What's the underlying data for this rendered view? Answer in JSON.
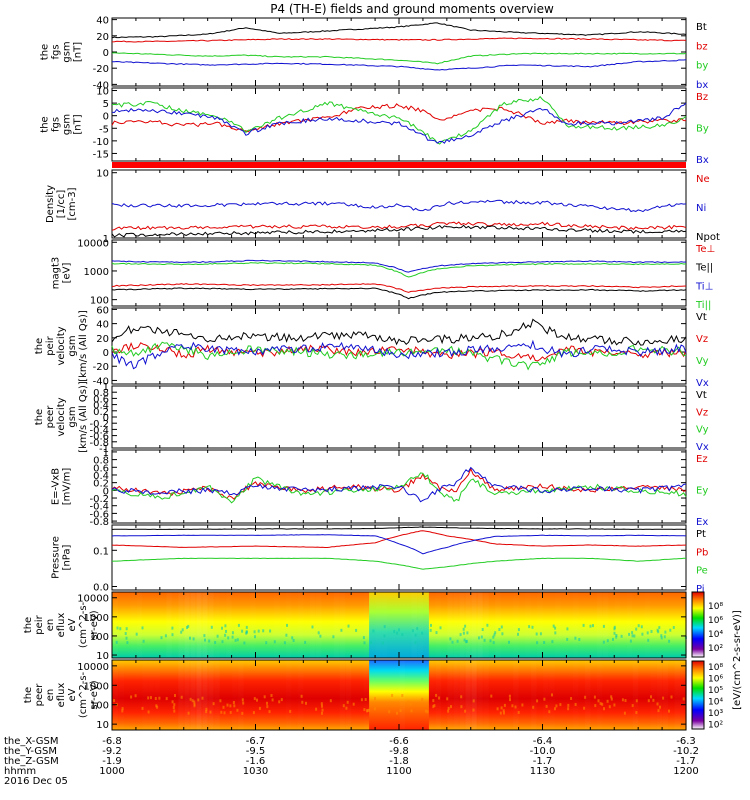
{
  "title": "P4 (TH-E) fields and ground moments overview",
  "date_label": "2016 Dec 05",
  "colors": {
    "black": "#000000",
    "red": "#e00000",
    "green": "#22cc22",
    "blue": "#1010d0"
  },
  "chart_data": [
    {
      "type": "line",
      "ylabel": [
        "the",
        "fgs",
        "gsm",
        "[nT]"
      ],
      "yticks": [
        40,
        20,
        0,
        -20,
        -40
      ],
      "ylim": [
        -42,
        42
      ],
      "ylog": false,
      "x": [
        0,
        10,
        20,
        28,
        35,
        45,
        60,
        68,
        75,
        85,
        100,
        110,
        120
      ],
      "series": [
        {
          "name": "Bt",
          "color": "#000000",
          "values": [
            18,
            19,
            22,
            30,
            23,
            26,
            31,
            36,
            27,
            24,
            21,
            25,
            22
          ]
        },
        {
          "name": "bz",
          "color": "#e00000",
          "values": [
            13,
            13,
            14,
            15,
            16,
            16,
            15,
            15,
            16,
            17,
            16,
            15,
            14
          ]
        },
        {
          "name": "by",
          "color": "#22cc22",
          "values": [
            -1,
            -3,
            -5,
            -4,
            -6,
            -6,
            -10,
            -14,
            -5,
            -2,
            -2,
            -2,
            -2
          ]
        },
        {
          "name": "bx",
          "color": "#1010d0",
          "values": [
            -12,
            -14,
            -16,
            -15,
            -14,
            -15,
            -18,
            -22,
            -20,
            -16,
            -18,
            -12,
            -10
          ]
        }
      ]
    },
    {
      "type": "line",
      "ylabel": [
        "the",
        "fgs",
        "gsm",
        "[nT]"
      ],
      "yticks": [
        10,
        5,
        0,
        -5,
        -10,
        -15
      ],
      "ylim": [
        -18,
        11
      ],
      "ylog": false,
      "x": [
        0,
        8,
        15,
        22,
        28,
        35,
        45,
        52,
        60,
        65,
        68,
        75,
        82,
        90,
        95,
        105,
        115,
        120
      ],
      "series": [
        {
          "name": "Bz",
          "color": "#e00000",
          "values": [
            -3,
            -2,
            -4,
            -3,
            -6,
            -3,
            -1,
            3,
            4,
            2,
            -2,
            2,
            3,
            -3,
            -2,
            -3,
            -2,
            -2
          ]
        },
        {
          "name": "By",
          "color": "#22cc22",
          "values": [
            4,
            5,
            2,
            0,
            -6,
            -1,
            5,
            2,
            -1,
            -6,
            -11,
            -6,
            5,
            7,
            -4,
            -5,
            -4,
            -1
          ]
        },
        {
          "name": "Bx",
          "color": "#1010d0",
          "values": [
            2,
            2,
            1,
            -1,
            -7,
            -3,
            -1,
            -2,
            -3,
            -8,
            -11,
            -8,
            -2,
            3,
            -3,
            -3,
            -1,
            5
          ]
        }
      ]
    },
    {
      "type": "bar",
      "ylabel": [],
      "yticks": [],
      "series": []
    },
    {
      "type": "line",
      "ylabel": [
        "Density",
        "[1/cc]",
        "[cm-3]"
      ],
      "yticks": [
        10,
        1
      ],
      "ylim": [
        1,
        11
      ],
      "ylog": true,
      "x": [
        0,
        15,
        30,
        45,
        55,
        60,
        65,
        70,
        80,
        90,
        100,
        110,
        120
      ],
      "series": [
        {
          "name": "Ne",
          "color": "#e00000",
          "values": [
            1.4,
            1.45,
            1.5,
            1.5,
            1.45,
            1.5,
            1.55,
            1.7,
            1.6,
            1.65,
            1.5,
            1.4,
            1.5
          ]
        },
        {
          "name": "Ni",
          "color": "#1010d0",
          "values": [
            3.2,
            3.1,
            3.3,
            3.4,
            3.0,
            3.2,
            2.6,
            3.4,
            3.6,
            3.5,
            3.0,
            2.6,
            3.4
          ]
        },
        {
          "name": "Npot",
          "color": "#000000",
          "values": [
            1.1,
            1.15,
            1.2,
            1.25,
            1.3,
            1.35,
            1.4,
            1.5,
            1.45,
            1.4,
            1.3,
            1.25,
            1.3
          ]
        }
      ]
    },
    {
      "type": "line",
      "ylabel": [
        "magt3",
        "[eV]"
      ],
      "yticks": [
        10000,
        1000,
        100
      ],
      "ylim": [
        60,
        12000
      ],
      "ylog": true,
      "x": [
        0,
        15,
        30,
        45,
        55,
        62,
        68,
        75,
        85,
        100,
        110,
        120
      ],
      "series": [
        {
          "name": "Te⊥",
          "color": "#e00000",
          "values": [
            300,
            350,
            320,
            330,
            360,
            180,
            250,
            280,
            300,
            300,
            270,
            300
          ]
        },
        {
          "name": "Te||",
          "color": "#000000",
          "values": [
            220,
            250,
            230,
            240,
            250,
            110,
            180,
            200,
            210,
            220,
            200,
            220
          ]
        },
        {
          "name": "Ti⊥",
          "color": "#1010d0",
          "values": [
            2200,
            2000,
            2300,
            2100,
            1900,
            900,
            1500,
            1800,
            2000,
            2200,
            2000,
            2100
          ]
        },
        {
          "name": "Ti||",
          "color": "#22cc22",
          "values": [
            1800,
            1700,
            1900,
            1800,
            1600,
            600,
            1200,
            1500,
            1700,
            1800,
            1700,
            1800
          ]
        }
      ]
    },
    {
      "type": "line",
      "ylabel": [
        "the",
        "peir",
        "velocity",
        "gsm",
        "[km/s (All Qs)]"
      ],
      "yticks": [
        60,
        40,
        20,
        0,
        -20,
        -40
      ],
      "ylim": [
        -45,
        62
      ],
      "ylog": false,
      "x": [
        0,
        5,
        10,
        15,
        20,
        30,
        40,
        50,
        60,
        70,
        80,
        88,
        95,
        100,
        110,
        120
      ],
      "series": [
        {
          "name": "Vt",
          "color": "#000000",
          "values": [
            20,
            35,
            30,
            25,
            20,
            22,
            20,
            25,
            15,
            18,
            22,
            40,
            20,
            18,
            15,
            18
          ]
        },
        {
          "name": "Vz",
          "color": "#e00000",
          "values": [
            0,
            10,
            5,
            -5,
            5,
            -3,
            5,
            0,
            5,
            -5,
            0,
            -10,
            5,
            0,
            -5,
            0
          ]
        },
        {
          "name": "Vy",
          "color": "#22cc22",
          "values": [
            5,
            -5,
            10,
            5,
            -5,
            5,
            0,
            -5,
            0,
            5,
            -10,
            -20,
            0,
            -5,
            5,
            0
          ]
        },
        {
          "name": "Vx",
          "color": "#1010d0",
          "values": [
            -5,
            -20,
            0,
            10,
            5,
            0,
            5,
            10,
            -5,
            0,
            5,
            10,
            -5,
            5,
            0,
            5
          ]
        }
      ]
    },
    {
      "type": "line",
      "ylabel": [
        "the",
        "peer",
        "velocity",
        "gsm",
        "[km/s (All Qs)]"
      ],
      "yticks": [
        1.0,
        0.8,
        0.6,
        0.4,
        0.2,
        0.0,
        -0.2,
        -0.4,
        -0.6,
        -0.8,
        -1.0
      ],
      "ylim": [
        -1,
        1
      ],
      "ylog": false,
      "series": [
        {
          "name": "Vt",
          "color": "#000000"
        },
        {
          "name": "Vz",
          "color": "#e00000"
        },
        {
          "name": "Vy",
          "color": "#22cc22"
        },
        {
          "name": "Vx",
          "color": "#1010d0"
        }
      ]
    },
    {
      "type": "line",
      "ylabel": [
        "E=-VxB",
        "[mV/m]"
      ],
      "yticks": [
        1.0,
        0.8,
        0.6,
        0.4,
        0.2,
        0.0,
        -0.2,
        -0.4,
        -0.6,
        -0.8
      ],
      "ylim": [
        -0.85,
        1.05
      ],
      "ylog": false,
      "x": [
        0,
        10,
        20,
        25,
        30,
        40,
        50,
        60,
        65,
        68,
        72,
        75,
        80,
        90,
        100,
        110,
        120
      ],
      "series": [
        {
          "name": "Ez",
          "color": "#e00000",
          "values": [
            0.1,
            -0.1,
            0.05,
            -0.2,
            0.2,
            0.0,
            0.1,
            0.0,
            0.4,
            0.1,
            0.0,
            0.5,
            0.0,
            0.1,
            0.0,
            0.1,
            0.0
          ]
        },
        {
          "name": "Ey",
          "color": "#22cc22",
          "values": [
            0.0,
            -0.2,
            0.1,
            -0.3,
            0.3,
            -0.1,
            0.0,
            0.1,
            0.5,
            0.0,
            -0.3,
            0.3,
            -0.1,
            0.0,
            0.1,
            0.0,
            -0.1
          ]
        },
        {
          "name": "Ex",
          "color": "#1010d0",
          "values": [
            0.0,
            -0.05,
            0.0,
            -0.1,
            0.1,
            0.0,
            0.05,
            0.1,
            -0.3,
            0.0,
            0.2,
            0.6,
            0.1,
            0.0,
            0.05,
            0.0,
            0.1
          ]
        }
      ]
    },
    {
      "type": "line",
      "ylabel": [
        "Pressure",
        "[nPa]"
      ],
      "yticks": [
        0.1,
        0.01
      ],
      "ylim": [
        0.008,
        0.5
      ],
      "ylog": true,
      "x": [
        0,
        15,
        30,
        45,
        55,
        60,
        65,
        70,
        80,
        90,
        100,
        110,
        120
      ],
      "series": [
        {
          "name": "Pt",
          "color": "#000000",
          "values": [
            0.38,
            0.38,
            0.39,
            0.39,
            0.4,
            0.42,
            0.44,
            0.42,
            0.4,
            0.39,
            0.39,
            0.38,
            0.38
          ]
        },
        {
          "name": "Pb",
          "color": "#e00000",
          "values": [
            0.14,
            0.12,
            0.13,
            0.12,
            0.16,
            0.25,
            0.35,
            0.25,
            0.15,
            0.13,
            0.14,
            0.13,
            0.14
          ]
        },
        {
          "name": "Pe",
          "color": "#22cc22",
          "values": [
            0.05,
            0.06,
            0.06,
            0.06,
            0.05,
            0.04,
            0.03,
            0.035,
            0.05,
            0.06,
            0.06,
            0.05,
            0.06
          ]
        },
        {
          "name": "Pi",
          "color": "#1010d0",
          "values": [
            0.25,
            0.26,
            0.26,
            0.27,
            0.25,
            0.15,
            0.08,
            0.12,
            0.24,
            0.26,
            0.25,
            0.26,
            0.25
          ]
        }
      ]
    },
    {
      "type": "heatmap",
      "ylabel": [
        "the",
        "peir",
        "en",
        "eflux",
        "eV",
        "(cm^2-s-",
        "sr-eV)"
      ],
      "yticks": [
        10000,
        1000,
        100,
        10
      ],
      "ylim": [
        7,
        20000
      ],
      "ylog": true
    },
    {
      "type": "heatmap",
      "ylabel": [
        "the",
        "peer",
        "en",
        "eflux",
        "eV",
        "(cm^2-s-",
        "sr-eV)"
      ],
      "yticks": [
        10000,
        1000,
        100,
        10
      ],
      "ylim": [
        5,
        20000
      ],
      "ylog": true
    }
  ],
  "colorbar": {
    "label": "[eV/(cm^2-s-sr-eV)]",
    "ticks_top": [
      "10⁸",
      "10⁶",
      "10⁴",
      "10²"
    ],
    "ticks_bottom": [
      "10⁸",
      "10⁶",
      "10⁵",
      "10⁴",
      "10³",
      "10²"
    ]
  },
  "x_axis": {
    "row_labels": [
      "the_X-GSM",
      "the_Y-GSM",
      "the_Z-GSM",
      "hhmm"
    ],
    "ticks": [
      {
        "t": 0,
        "vals": [
          "-6.8",
          "-9.2",
          "-1.9",
          "1000"
        ]
      },
      {
        "t": 30,
        "vals": [
          "-6.7",
          "-9.5",
          "-1.6",
          "1030"
        ]
      },
      {
        "t": 60,
        "vals": [
          "-6.6",
          "-9.8",
          "-1.8",
          "1100"
        ]
      },
      {
        "t": 90,
        "vals": [
          "-6.4",
          "-10.0",
          "-1.7",
          "1130"
        ]
      },
      {
        "t": 120,
        "vals": [
          "-6.3",
          "-10.2",
          "-1.7",
          "1200"
        ]
      }
    ]
  }
}
